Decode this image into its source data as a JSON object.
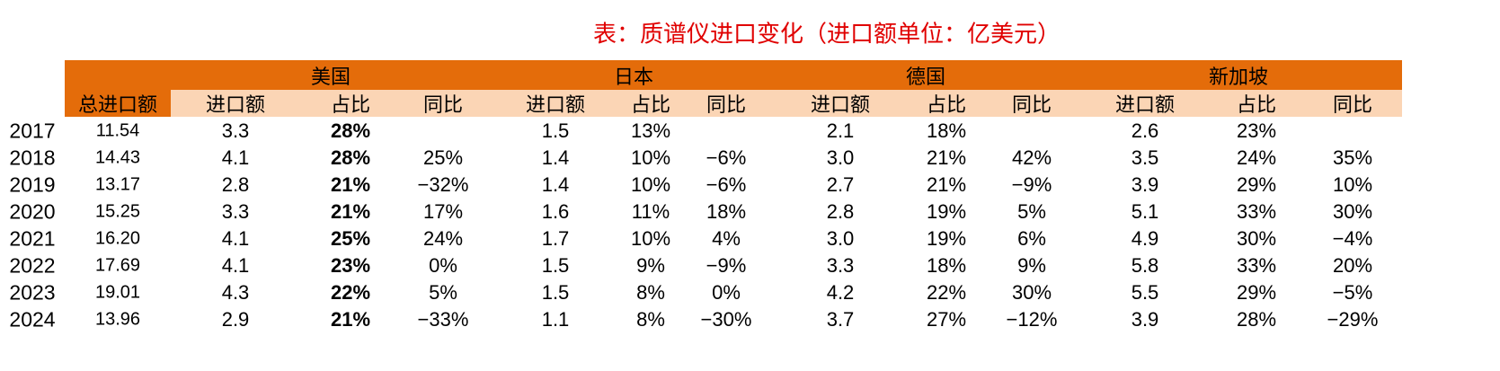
{
  "title": "表：质谱仪进口变化（进口额单位：亿美元）",
  "table": {
    "groups": [
      "美国",
      "日本",
      "德国",
      "新加坡"
    ],
    "total_header": "总进口额",
    "subheaders": [
      [
        "进口额",
        "占比",
        "同比"
      ],
      [
        "进口额",
        "占比",
        "同比"
      ],
      [
        "进口额",
        "占比",
        "同比"
      ],
      [
        "进口额",
        "占比",
        "同比"
      ]
    ],
    "rows": [
      [
        "2017",
        "11.54",
        "3.3",
        "28%",
        null,
        "1.5",
        "13%",
        null,
        "2.1",
        "18%",
        null,
        "2.6",
        "23%",
        null
      ],
      [
        "2018",
        "14.43",
        "4.1",
        "28%",
        "25%",
        "1.4",
        "10%",
        "−6%",
        "3.0",
        "21%",
        "42%",
        "3.5",
        "24%",
        "35%"
      ],
      [
        "2019",
        "13.17",
        "2.8",
        "21%",
        "−32%",
        "1.4",
        "10%",
        "−6%",
        "2.7",
        "21%",
        "−9%",
        "3.9",
        "29%",
        "10%"
      ],
      [
        "2020",
        "15.25",
        "3.3",
        "21%",
        "17%",
        "1.6",
        "11%",
        "18%",
        "2.8",
        "19%",
        "5%",
        "5.1",
        "33%",
        "30%"
      ],
      [
        "2021",
        "16.20",
        "4.1",
        "25%",
        "24%",
        "1.7",
        "10%",
        "4%",
        "3.0",
        "19%",
        "6%",
        "4.9",
        "30%",
        "−4%"
      ],
      [
        "2022",
        "17.69",
        "4.1",
        "23%",
        "0%",
        "1.5",
        "9%",
        "−9%",
        "3.3",
        "18%",
        "9%",
        "5.8",
        "33%",
        "20%"
      ],
      [
        "2023",
        "19.01",
        "4.3",
        "22%",
        "5%",
        "1.5",
        "8%",
        "0%",
        "4.2",
        "22%",
        "30%",
        "5.5",
        "29%",
        "−5%"
      ],
      [
        "2024",
        "13.96",
        "2.9",
        "21%",
        "−33%",
        "1.1",
        "8%",
        "−30%",
        "3.7",
        "27%",
        "−12%",
        "3.9",
        "28%",
        "−29%"
      ]
    ]
  }
}
